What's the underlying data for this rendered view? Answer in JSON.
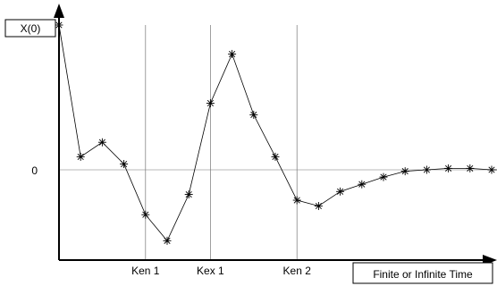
{
  "chart_data": {
    "type": "line",
    "ylabel": "X(0)",
    "xlabel": "Finite or Infinite Time",
    "y_zero_label": "0",
    "x": [
      0,
      1,
      2,
      3,
      4,
      5,
      6,
      7,
      8,
      9,
      10,
      11,
      12,
      13,
      14,
      15,
      16,
      17,
      18,
      19,
      20,
      21
    ],
    "values": [
      1.0,
      0.09,
      0.19,
      0.04,
      -0.31,
      -0.49,
      -0.17,
      0.46,
      0.8,
      0.38,
      0.09,
      -0.21,
      -0.25,
      -0.15,
      -0.1,
      -0.05,
      -0.01,
      0.0,
      0.01,
      0.01,
      0.0,
      0.0
    ],
    "marker": "asterisk",
    "ylim": [
      -0.6,
      1.1
    ],
    "xlim": [
      0,
      22
    ],
    "reference_lines": [
      {
        "label": "Ken 1",
        "x": 4
      },
      {
        "label": "Kex 1",
        "x": 7
      },
      {
        "label": "Ken 2",
        "x": 11
      }
    ],
    "grid": false
  }
}
